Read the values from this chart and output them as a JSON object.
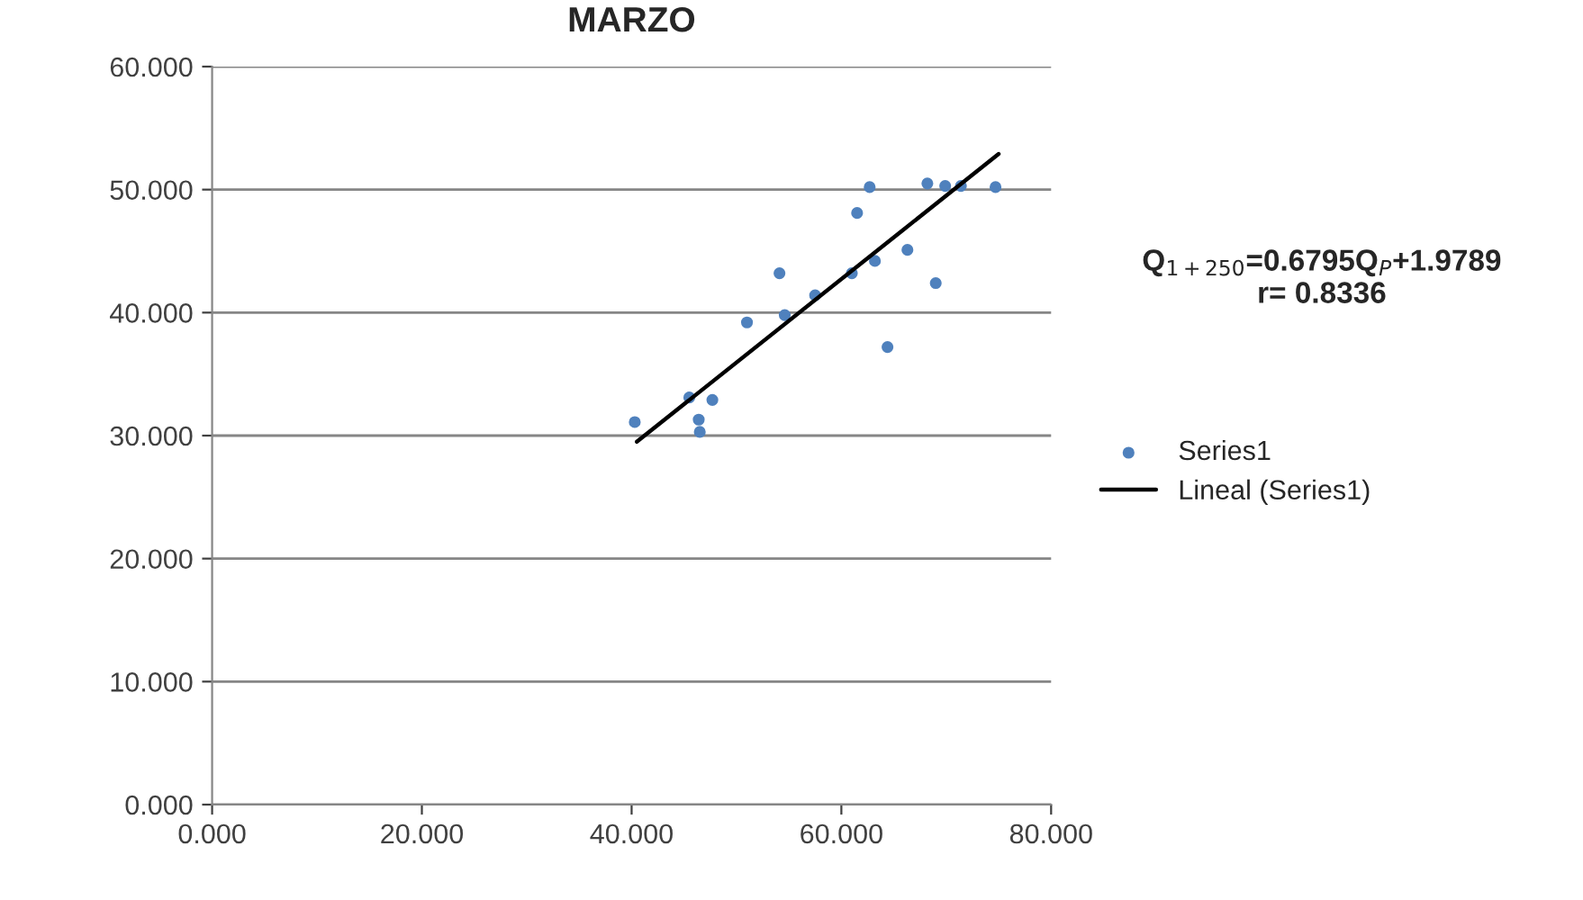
{
  "chart_data": {
    "type": "scatter",
    "title": "MARZO",
    "xlim": [
      0,
      80
    ],
    "ylim": [
      0,
      60
    ],
    "xticks": [
      {
        "value": 0,
        "label": "0.000"
      },
      {
        "value": 20,
        "label": "20.000"
      },
      {
        "value": 40,
        "label": "40.000"
      },
      {
        "value": 60,
        "label": "60.000"
      },
      {
        "value": 80,
        "label": "80.000"
      }
    ],
    "yticks": [
      {
        "value": 0,
        "label": "0.000"
      },
      {
        "value": 10,
        "label": "10.000"
      },
      {
        "value": 20,
        "label": "20.000"
      },
      {
        "value": 30,
        "label": "30.000"
      },
      {
        "value": 40,
        "label": "40.000"
      },
      {
        "value": 50,
        "label": "50.000"
      },
      {
        "value": 60,
        "label": "60.000"
      }
    ],
    "grid": "y",
    "legend": "right",
    "marker": "circle",
    "annotations": [
      "Q$_{1+250}$=0.6795Q$_{P}$+1.9789\nr= 0.8336"
    ],
    "series": [
      {
        "name": "Series1",
        "color": "#4f81bd",
        "x": [
          40.3,
          45.5,
          46.4,
          46.5,
          47.7,
          51,
          54.1,
          54.6,
          57.5,
          61,
          61.5,
          62.7,
          63.2,
          64.4,
          66.3,
          69,
          68.2,
          69.9,
          71.4,
          74.7
        ],
        "values": [
          31.1,
          33.1,
          31.3,
          30.3,
          32.9,
          39.2,
          43.2,
          39.8,
          41.4,
          43.2,
          48.1,
          50.2,
          44.2,
          37.2,
          45.1,
          42.4,
          50.5,
          50.3,
          50.3,
          50.2
        ]
      },
      {
        "name": "Lineal (Series1)",
        "type": "line",
        "color": "#000000",
        "x": [
          40.5,
          75
        ],
        "values": [
          29.5,
          52.9
        ],
        "line_style": "solid",
        "marker": "none"
      }
    ]
  }
}
